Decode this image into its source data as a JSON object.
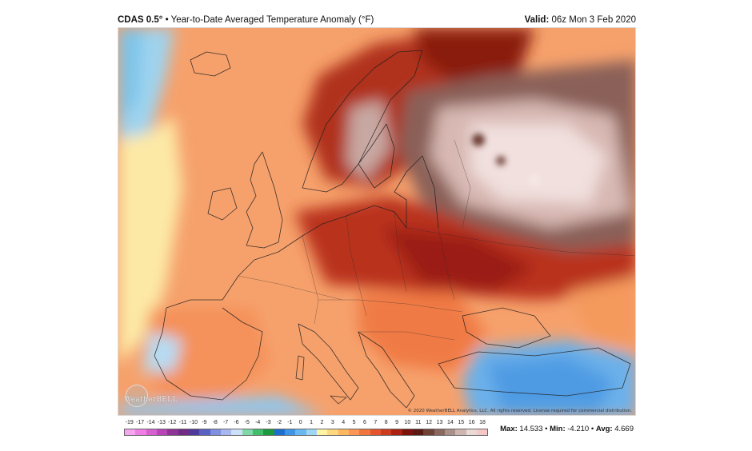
{
  "header": {
    "model": "CDAS 0.5°",
    "bullet": "•",
    "title": "Year-to-Date Averaged Temperature Anomaly (°F)",
    "valid_label": "Valid:",
    "valid_value": "06z Mon 3 Feb 2020"
  },
  "map": {
    "logo_text": "WeatherBELL",
    "copyright": "© 2020 WeatherBELL Analytics, LLC. All rights reserved. License required for commercial distribution."
  },
  "colorbar": {
    "ticks": [
      "-19",
      "-17",
      "-14",
      "-13",
      "-12",
      "-11",
      "-10",
      "-9",
      "-8",
      "-7",
      "-6",
      "-5",
      "-4",
      "-3",
      "-2",
      "-1",
      "0",
      "1",
      "2",
      "3",
      "4",
      "5",
      "6",
      "7",
      "8",
      "9",
      "10",
      "11",
      "12",
      "13",
      "14",
      "15",
      "16",
      "18"
    ],
    "colors": [
      "#f6a6ee",
      "#ee7fe4",
      "#d85fd2",
      "#b844b8",
      "#8e3497",
      "#6f2b85",
      "#4e3a9c",
      "#5a61c2",
      "#7f8fe0",
      "#a7b7f0",
      "#cde0f7",
      "#7fd8a8",
      "#3fbf6c",
      "#1e9a3e",
      "#1c6fcf",
      "#3f95e5",
      "#6ab8f2",
      "#9fd6f6",
      "#fff4a6",
      "#ffd77d",
      "#ffb75f",
      "#fb9654",
      "#f2743f",
      "#e4552d",
      "#cc3a1f",
      "#ab2212",
      "#7d120c",
      "#5a1a12",
      "#6e4236",
      "#8a675f",
      "#ab8f89",
      "#cdb6b2",
      "#ead9d6",
      "#f5c7c7"
    ]
  },
  "stats": {
    "max_label": "Max:",
    "max_value": "14.533",
    "min_label": "Min:",
    "min_value": "-4.210",
    "avg_label": "Avg:",
    "avg_value": "4.669"
  }
}
